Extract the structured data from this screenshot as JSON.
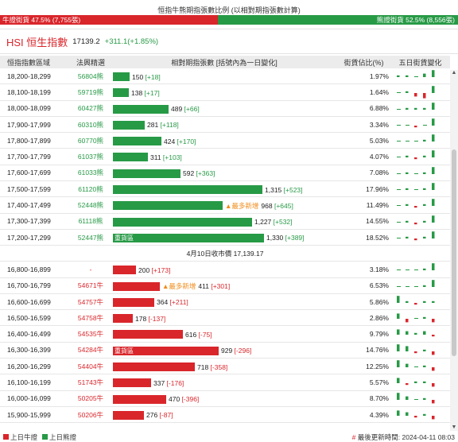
{
  "page_title": "恒指牛熊期指張數比例 (以相對期指張數計算)",
  "ratio": {
    "bull_label": "牛證街貨 47.5% (7,755張)",
    "bear_label": "熊證街貨 52.5% (8,556張)",
    "bull_fraction": 0.475
  },
  "hsi": {
    "name": "HSI 恒生指數",
    "value": "17139.2",
    "change": "+311.1(+1.85%)"
  },
  "table": {
    "headers": {
      "range": "恒指指數區域",
      "code": "法興精選",
      "bar": "相對期指張數 [括號內為一日變化]",
      "pct": "街貨佔比(%)",
      "five": "五日街貨變化"
    },
    "bear_rows": [
      {
        "range": "18,200-18,299",
        "code": "56804熊",
        "count": "150",
        "delta": "[+18]",
        "value": 150,
        "tag": "",
        "pct": "1.97%",
        "five": [
          1,
          1,
          0,
          2,
          4
        ]
      },
      {
        "range": "18,100-18,199",
        "code": "59719熊",
        "count": "138",
        "delta": "[+17]",
        "value": 138,
        "tag": "",
        "pct": "1.64%",
        "five": [
          0,
          1,
          -2,
          -3,
          4
        ]
      },
      {
        "range": "18,000-18,099",
        "code": "60427熊",
        "count": "489",
        "delta": "[+66]",
        "value": 489,
        "tag": "",
        "pct": "6.88%",
        "five": [
          0,
          1,
          1,
          1,
          4
        ]
      },
      {
        "range": "17,900-17,999",
        "code": "60310熊",
        "count": "281",
        "delta": "[+118]",
        "value": 281,
        "tag": "",
        "pct": "3.34%",
        "five": [
          0,
          0,
          -1,
          0,
          4
        ]
      },
      {
        "range": "17,800-17,899",
        "code": "60770熊",
        "count": "424",
        "delta": "[+170]",
        "value": 424,
        "tag": "",
        "pct": "5.03%",
        "five": [
          0,
          0,
          0,
          1,
          4
        ]
      },
      {
        "range": "17,700-17,799",
        "code": "61037熊",
        "count": "311",
        "delta": "[+103]",
        "value": 311,
        "tag": "",
        "pct": "4.07%",
        "five": [
          0,
          1,
          -1,
          1,
          4
        ]
      },
      {
        "range": "17,600-17,699",
        "code": "61033熊",
        "count": "592",
        "delta": "[+363]",
        "value": 592,
        "tag": "",
        "pct": "7.08%",
        "five": [
          0,
          1,
          0,
          1,
          4
        ]
      },
      {
        "range": "17,500-17,599",
        "code": "61120熊",
        "count": "1,315",
        "delta": "[+523]",
        "value": 1315,
        "tag": "",
        "pct": "17.96%",
        "five": [
          0,
          1,
          0,
          1,
          4
        ]
      },
      {
        "range": "17,400-17,499",
        "code": "52448熊",
        "count": "968",
        "delta": "[+645]",
        "value": 968,
        "tag": "▲最多新增",
        "pct": "11.49%",
        "five": [
          0,
          1,
          -1,
          1,
          4
        ]
      },
      {
        "range": "17,300-17,399",
        "code": "61118熊",
        "count": "1,227",
        "delta": "[+532]",
        "value": 1227,
        "tag": "",
        "pct": "14.55%",
        "five": [
          0,
          1,
          -1,
          1,
          4
        ]
      },
      {
        "range": "17,200-17,299",
        "code": "52447熊",
        "count": "1,330",
        "delta": "[+389]",
        "value": 1330,
        "tag": "重貨區",
        "pct": "18.52%",
        "five": [
          0,
          1,
          -1,
          1,
          4
        ]
      }
    ],
    "close_label": "4月10日收市價 17,139.17",
    "bull_rows": [
      {
        "range": "16,800-16,899",
        "code": "-",
        "count": "200",
        "delta": "[+173]",
        "value": 200,
        "tag": "",
        "pct": "3.18%",
        "five": [
          0,
          0,
          0,
          1,
          4
        ]
      },
      {
        "range": "16,700-16,799",
        "code": "54671牛",
        "count": "411",
        "delta": "[+301]",
        "value": 411,
        "tag": "▲最多新增",
        "pct": "6.53%",
        "five": [
          0,
          0,
          0,
          1,
          4
        ]
      },
      {
        "range": "16,600-16,699",
        "code": "54757牛",
        "count": "364",
        "delta": "[+211]",
        "value": 364,
        "tag": "",
        "pct": "5.86%",
        "five": [
          4,
          1,
          -1,
          1,
          1
        ]
      },
      {
        "range": "16,500-16,599",
        "code": "54758牛",
        "count": "178",
        "delta": "[-137]",
        "value": 178,
        "tag": "",
        "pct": "2.86%",
        "five": [
          3,
          -2,
          0,
          1,
          -2
        ]
      },
      {
        "range": "16,400-16,499",
        "code": "54535牛",
        "count": "616",
        "delta": "[-75]",
        "value": 616,
        "tag": "",
        "pct": "9.79%",
        "five": [
          3,
          2,
          1,
          2,
          -1
        ]
      },
      {
        "range": "16,300-16,399",
        "code": "54284牛",
        "count": "929",
        "delta": "[-296]",
        "value": 929,
        "tag": "重貨區",
        "pct": "14.76%",
        "five": [
          4,
          3,
          -1,
          1,
          -2
        ]
      },
      {
        "range": "16,200-16,299",
        "code": "54404牛",
        "count": "718",
        "delta": "[-358]",
        "value": 718,
        "tag": "",
        "pct": "12.25%",
        "five": [
          4,
          2,
          0,
          1,
          -2
        ]
      },
      {
        "range": "16,100-16,199",
        "code": "51743牛",
        "count": "337",
        "delta": "[-176]",
        "value": 337,
        "tag": "",
        "pct": "5.57%",
        "five": [
          3,
          -1,
          1,
          1,
          -2
        ]
      },
      {
        "range": "16,000-16,099",
        "code": "50205牛",
        "count": "470",
        "delta": "[-396]",
        "value": 470,
        "tag": "",
        "pct": "8.70%",
        "five": [
          4,
          2,
          0,
          1,
          -2
        ]
      },
      {
        "range": "15,900-15,999",
        "code": "50206牛",
        "count": "276",
        "delta": "[-87]",
        "value": 276,
        "tag": "",
        "pct": "4.39%",
        "five": [
          3,
          2,
          -1,
          1,
          -2
        ]
      }
    ]
  },
  "footer": {
    "legend_bull": "上日牛證",
    "legend_bear": "上日熊證",
    "update_hash": "#",
    "update_text": "最後更新時間: 2024-04-11 08:03"
  },
  "colors": {
    "bull": "#d9262b",
    "bear": "#279a46",
    "tag": "#f08c1a"
  }
}
